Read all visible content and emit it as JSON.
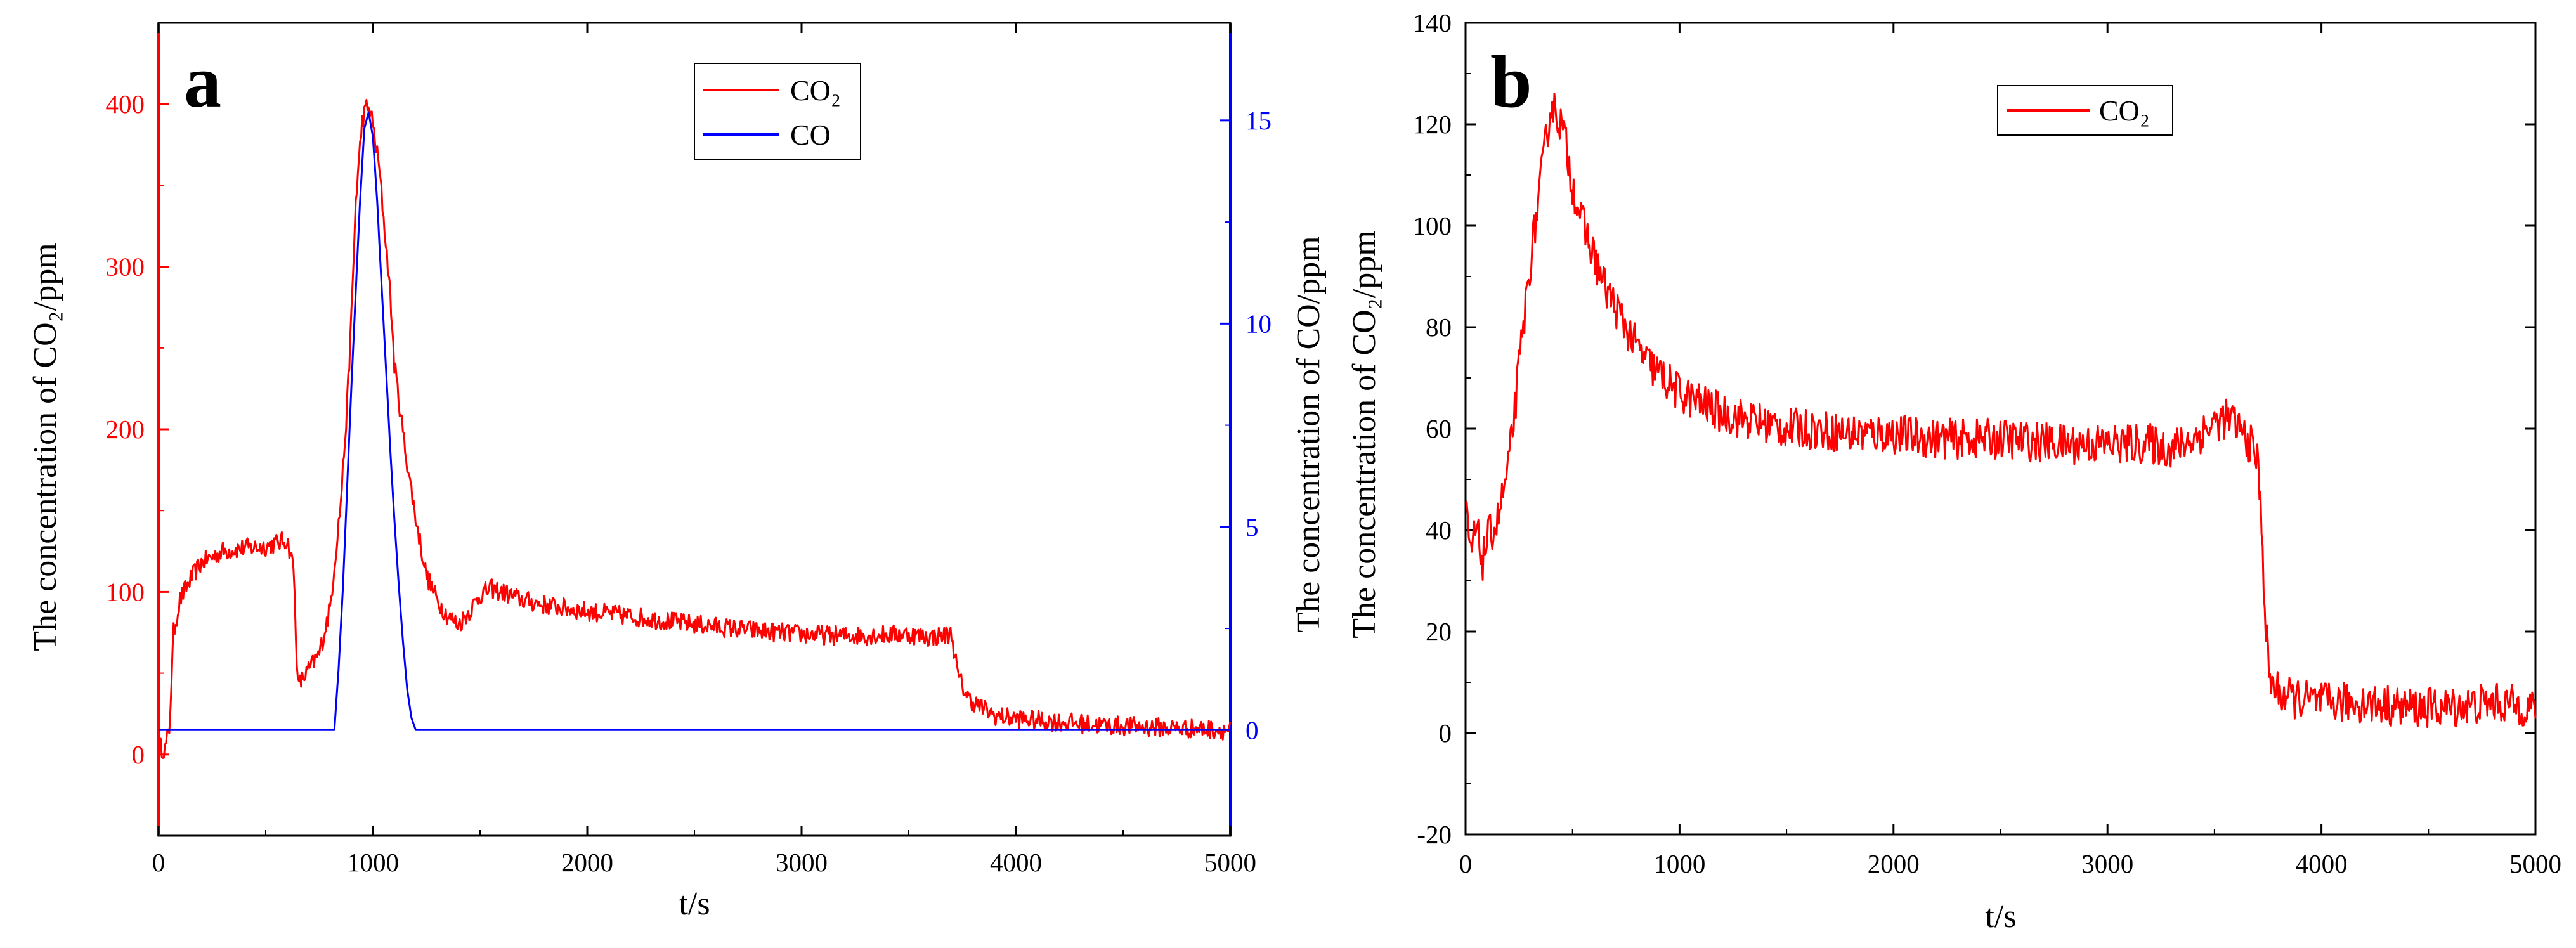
{
  "figure": {
    "panels": [
      {
        "id": "a",
        "letter": "a"
      },
      {
        "id": "b",
        "letter": "b"
      }
    ]
  },
  "chart_data": [
    {
      "panel": "a",
      "type": "line",
      "title": "",
      "xlabel": "t/s",
      "ylabel": "The concentration of CO₂/ppm",
      "y2label": "The concentration of CO/ppm",
      "xlim": [
        0,
        5000
      ],
      "ylim": [
        -50,
        450
      ],
      "y2lim": [
        -2.6,
        17.4
      ],
      "xticks": [
        0,
        1000,
        2000,
        3000,
        4000,
        5000
      ],
      "xtick_labels": [
        "0",
        "1000",
        "2000",
        "3000",
        "4000",
        "5000"
      ],
      "yticks": [
        0,
        100,
        200,
        300,
        400
      ],
      "ytick_labels": [
        "0",
        "100",
        "200",
        "300",
        "400"
      ],
      "y2ticks": [
        0,
        5,
        10,
        15
      ],
      "y2tick_labels": [
        "0",
        "5",
        "10",
        "15"
      ],
      "legend": {
        "position": "top-right",
        "entries": [
          "CO₂",
          "CO"
        ]
      },
      "series": [
        {
          "name": "CO₂",
          "color": "#ff0000",
          "axis": "left",
          "x": [
            0,
            30,
            50,
            70,
            100,
            150,
            200,
            300,
            400,
            500,
            550,
            600,
            630,
            650,
            700,
            750,
            800,
            850,
            880,
            900,
            920,
            950,
            970,
            990,
            1010,
            1030,
            1050,
            1080,
            1100,
            1150,
            1200,
            1250,
            1300,
            1350,
            1400,
            1450,
            1500,
            1550,
            1600,
            1700,
            1800,
            2000,
            2200,
            2500,
            2800,
            3000,
            3200,
            3500,
            3600,
            3700,
            3730,
            3780,
            3850,
            3900,
            4000,
            4200,
            4400,
            4600,
            4800,
            5000
          ],
          "y": [
            5,
            3,
            15,
            75,
            95,
            108,
            118,
            125,
            127,
            128,
            130,
            132,
            115,
            42,
            52,
            62,
            90,
            155,
            215,
            270,
            340,
            390,
            398,
            395,
            378,
            360,
            330,
            285,
            240,
            188,
            145,
            110,
            95,
            85,
            80,
            88,
            98,
            102,
            100,
            95,
            92,
            88,
            85,
            80,
            76,
            74,
            73,
            74,
            72,
            74,
            48,
            34,
            28,
            24,
            22,
            20,
            18,
            17,
            16,
            15
          ]
        },
        {
          "name": "CO",
          "color": "#0000ff",
          "axis": "right",
          "x": [
            0,
            820,
            840,
            860,
            880,
            900,
            920,
            940,
            960,
            980,
            1000,
            1020,
            1040,
            1060,
            1080,
            1100,
            1120,
            1140,
            1160,
            1180,
            1200,
            1220,
            5000
          ],
          "y": [
            0,
            0,
            1.5,
            3.5,
            6.0,
            8.5,
            10.8,
            13.0,
            14.8,
            15.2,
            14.6,
            13.0,
            11.0,
            9.0,
            7.0,
            5.2,
            3.6,
            2.2,
            1.0,
            0.3,
            0,
            0,
            0
          ]
        }
      ]
    },
    {
      "panel": "b",
      "type": "line",
      "title": "",
      "xlabel": "t/s",
      "ylabel": "The concentration of CO/ppm",
      "ylabel2": "The concentration of CO₂/ppm",
      "xlim": [
        0,
        5000
      ],
      "ylim": [
        -20,
        140
      ],
      "xticks": [
        0,
        1000,
        2000,
        3000,
        4000,
        5000
      ],
      "xtick_labels": [
        "0",
        "1000",
        "2000",
        "3000",
        "4000",
        "5000"
      ],
      "yticks": [
        -20,
        0,
        20,
        40,
        60,
        80,
        100,
        120,
        140
      ],
      "ytick_labels": [
        "-20",
        "0",
        "20",
        "40",
        "60",
        "80",
        "100",
        "120",
        "140"
      ],
      "legend": {
        "position": "top-right",
        "entries": [
          "CO₂"
        ]
      },
      "series": [
        {
          "name": "CO₂",
          "color": "#ff0000",
          "axis": "left",
          "x": [
            0,
            20,
            50,
            80,
            100,
            150,
            200,
            250,
            300,
            350,
            380,
            400,
            430,
            460,
            500,
            550,
            600,
            650,
            700,
            750,
            800,
            850,
            900,
            950,
            1000,
            1100,
            1200,
            1300,
            1400,
            1500,
            1600,
            1800,
            2000,
            2200,
            2500,
            2800,
            3000,
            3200,
            3300,
            3400,
            3500,
            3550,
            3600,
            3650,
            3680,
            3700,
            3720,
            3740,
            3760,
            3800,
            3850,
            4000,
            4200,
            4400,
            4600,
            4800,
            5000
          ],
          "y": [
            45,
            35,
            40,
            34,
            38,
            42,
            52,
            72,
            92,
            108,
            118,
            124,
            122,
            118,
            108,
            100,
            94,
            88,
            84,
            80,
            76,
            73,
            71,
            69,
            67,
            65,
            63,
            62,
            61,
            60,
            60,
            59,
            59,
            58,
            58,
            57,
            57,
            57,
            56,
            58,
            61,
            62,
            61,
            58,
            56,
            54,
            42,
            20,
            10,
            8,
            7,
            6,
            6,
            5,
            5,
            6,
            5
          ]
        }
      ]
    }
  ]
}
